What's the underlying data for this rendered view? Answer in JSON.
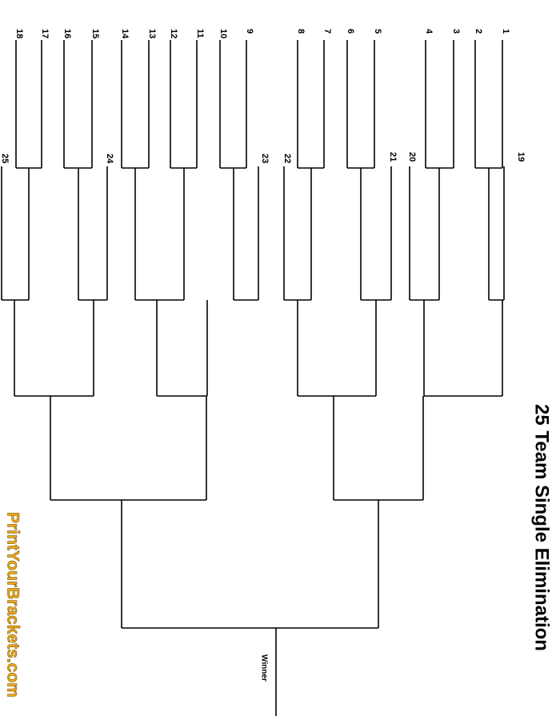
{
  "title": "25 Team Single Elimination",
  "seeds": [
    "1",
    "2",
    "3",
    "4",
    "5",
    "6",
    "7",
    "8",
    "9",
    "10",
    "11",
    "12",
    "13",
    "14",
    "15",
    "16",
    "17",
    "18",
    "19",
    "20",
    "21",
    "22",
    "23",
    "24",
    "25"
  ],
  "winner": "Winner",
  "watermark": "PrintYourBrackets.com"
}
